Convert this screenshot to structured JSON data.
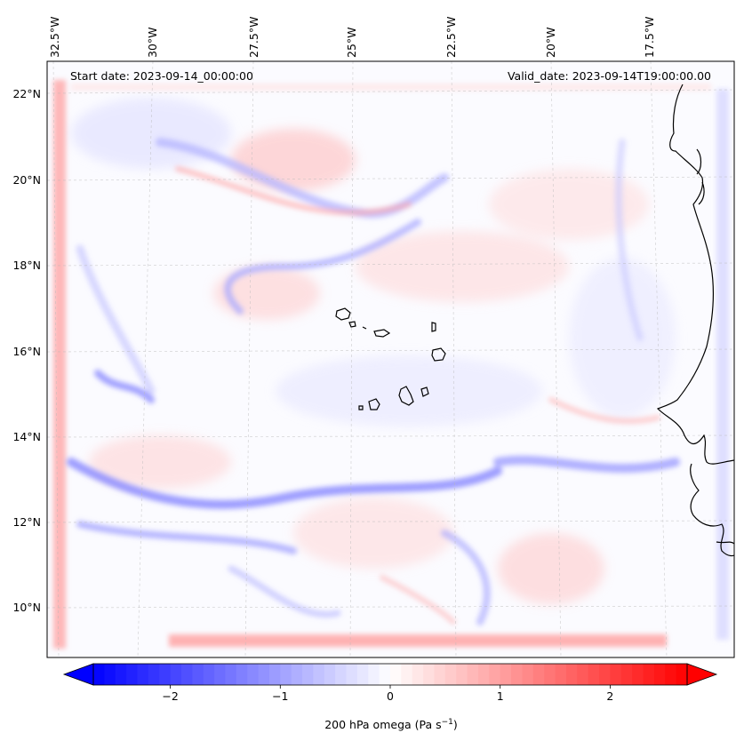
{
  "map": {
    "start_date": "Start date: 2023-09-14_00:00:00",
    "valid_date": "Valid_date: 2023-09-14T19:00:00.00",
    "lon_labels": [
      "32.5°W",
      "30°W",
      "27.5°W",
      "25°W",
      "22.5°W",
      "20°W",
      "17.5°W"
    ],
    "lat_labels": [
      "22°N",
      "20°N",
      "18°N",
      "16°N",
      "14°N",
      "12°N",
      "10°N"
    ],
    "colors": {
      "negative": "#0000ff",
      "positive": "#ff0000",
      "zero": "#ffffff",
      "coastline": "#000000"
    }
  },
  "colorbar": {
    "label": "200 hPa omega (Pa s",
    "label_sup": "−1",
    "label_end": ")",
    "min": -2.7,
    "max": 2.7,
    "ticks": [
      {
        "value": -2,
        "label": "−2"
      },
      {
        "value": -1,
        "label": "−1"
      },
      {
        "value": 0,
        "label": "0"
      },
      {
        "value": 1,
        "label": "1"
      },
      {
        "value": 2,
        "label": "2"
      }
    ]
  }
}
